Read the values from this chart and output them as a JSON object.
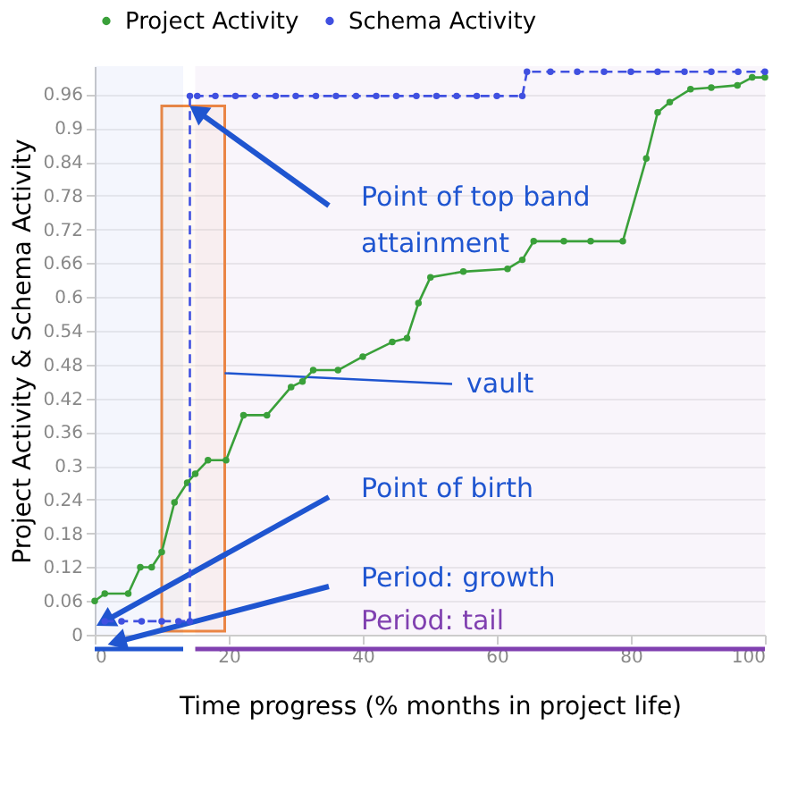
{
  "chart_data": {
    "type": "line",
    "xlabel": "Time progress (% months in project life)",
    "ylabel": "Project Activity & Schema Activity",
    "xlim": [
      0,
      100
    ],
    "xticks": [
      0,
      20,
      40,
      60,
      80,
      100
    ],
    "ylim": [
      0,
      1.01
    ],
    "yticks": [
      0,
      0.06,
      0.12,
      0.18,
      0.24,
      0.3,
      0.36,
      0.42,
      0.48,
      0.54,
      0.6,
      0.66,
      0.72,
      0.78,
      0.84,
      0.9,
      0.96
    ],
    "grid": "y",
    "legend": "top",
    "marker": "circle",
    "series": [
      {
        "name": "Project Activity",
        "color": "#3aa03a",
        "line_style": "solid",
        "x": [
          0,
          1.5,
          5,
          6.8,
          8.5,
          10,
          11.9,
          13.8,
          15,
          16.9,
          19.6,
          22.2,
          25.7,
          29.3,
          31,
          32.6,
          36.3,
          40,
          44.4,
          46.6,
          48.3,
          50.1,
          55,
          61.6,
          63.8,
          65.5,
          70,
          74,
          78.8,
          82.3,
          84,
          85.8,
          88.9,
          92,
          95.9,
          98.1,
          100
        ],
        "values": [
          0.06,
          0.073,
          0.073,
          0.12,
          0.12,
          0.147,
          0.235,
          0.27,
          0.286,
          0.31,
          0.31,
          0.39,
          0.39,
          0.44,
          0.45,
          0.47,
          0.47,
          0.494,
          0.52,
          0.527,
          0.589,
          0.635,
          0.645,
          0.65,
          0.666,
          0.699,
          0.699,
          0.699,
          0.699,
          0.846,
          0.928,
          0.946,
          0.969,
          0.972,
          0.976,
          0.99,
          0.99
        ]
      },
      {
        "name": "Schema Activity",
        "color": "#4050e0",
        "line_style": "dashed",
        "x": [
          1.5,
          4,
          7,
          10,
          12.5,
          14.2,
          14.2,
          15.3,
          18,
          21,
          24,
          27,
          30,
          33,
          36,
          39,
          42,
          45,
          48,
          51,
          54,
          57,
          60,
          63.8,
          64.5,
          68,
          72,
          76,
          80,
          84,
          88,
          92,
          96,
          100
        ],
        "values": [
          0.024,
          0.024,
          0.024,
          0.024,
          0.024,
          0.024,
          0.957,
          0.957,
          0.957,
          0.957,
          0.957,
          0.957,
          0.957,
          0.957,
          0.957,
          0.957,
          0.957,
          0.957,
          0.957,
          0.957,
          0.957,
          0.957,
          0.957,
          0.957,
          1.0,
          1.0,
          1.0,
          1.0,
          1.0,
          1.0,
          1.0,
          1.0,
          1.0,
          1.0
        ]
      }
    ],
    "annotations": [
      {
        "text": "Point of top band attainment",
        "x": 15.3,
        "y": 0.93
      },
      {
        "text": "Point of birth",
        "x": 1.5,
        "y": 0.024
      }
    ],
    "bands": [
      {
        "axis": "x",
        "from": 10,
        "to": 19.4,
        "label": "vault",
        "color": "#f08a40"
      },
      {
        "axis": "x",
        "from": 0,
        "to": 13.2,
        "label": "Period: growth",
        "color": "#1f55d0"
      },
      {
        "axis": "x",
        "from": 15,
        "to": 100,
        "label": "Period: tail",
        "color": "#8040b0"
      }
    ]
  }
}
